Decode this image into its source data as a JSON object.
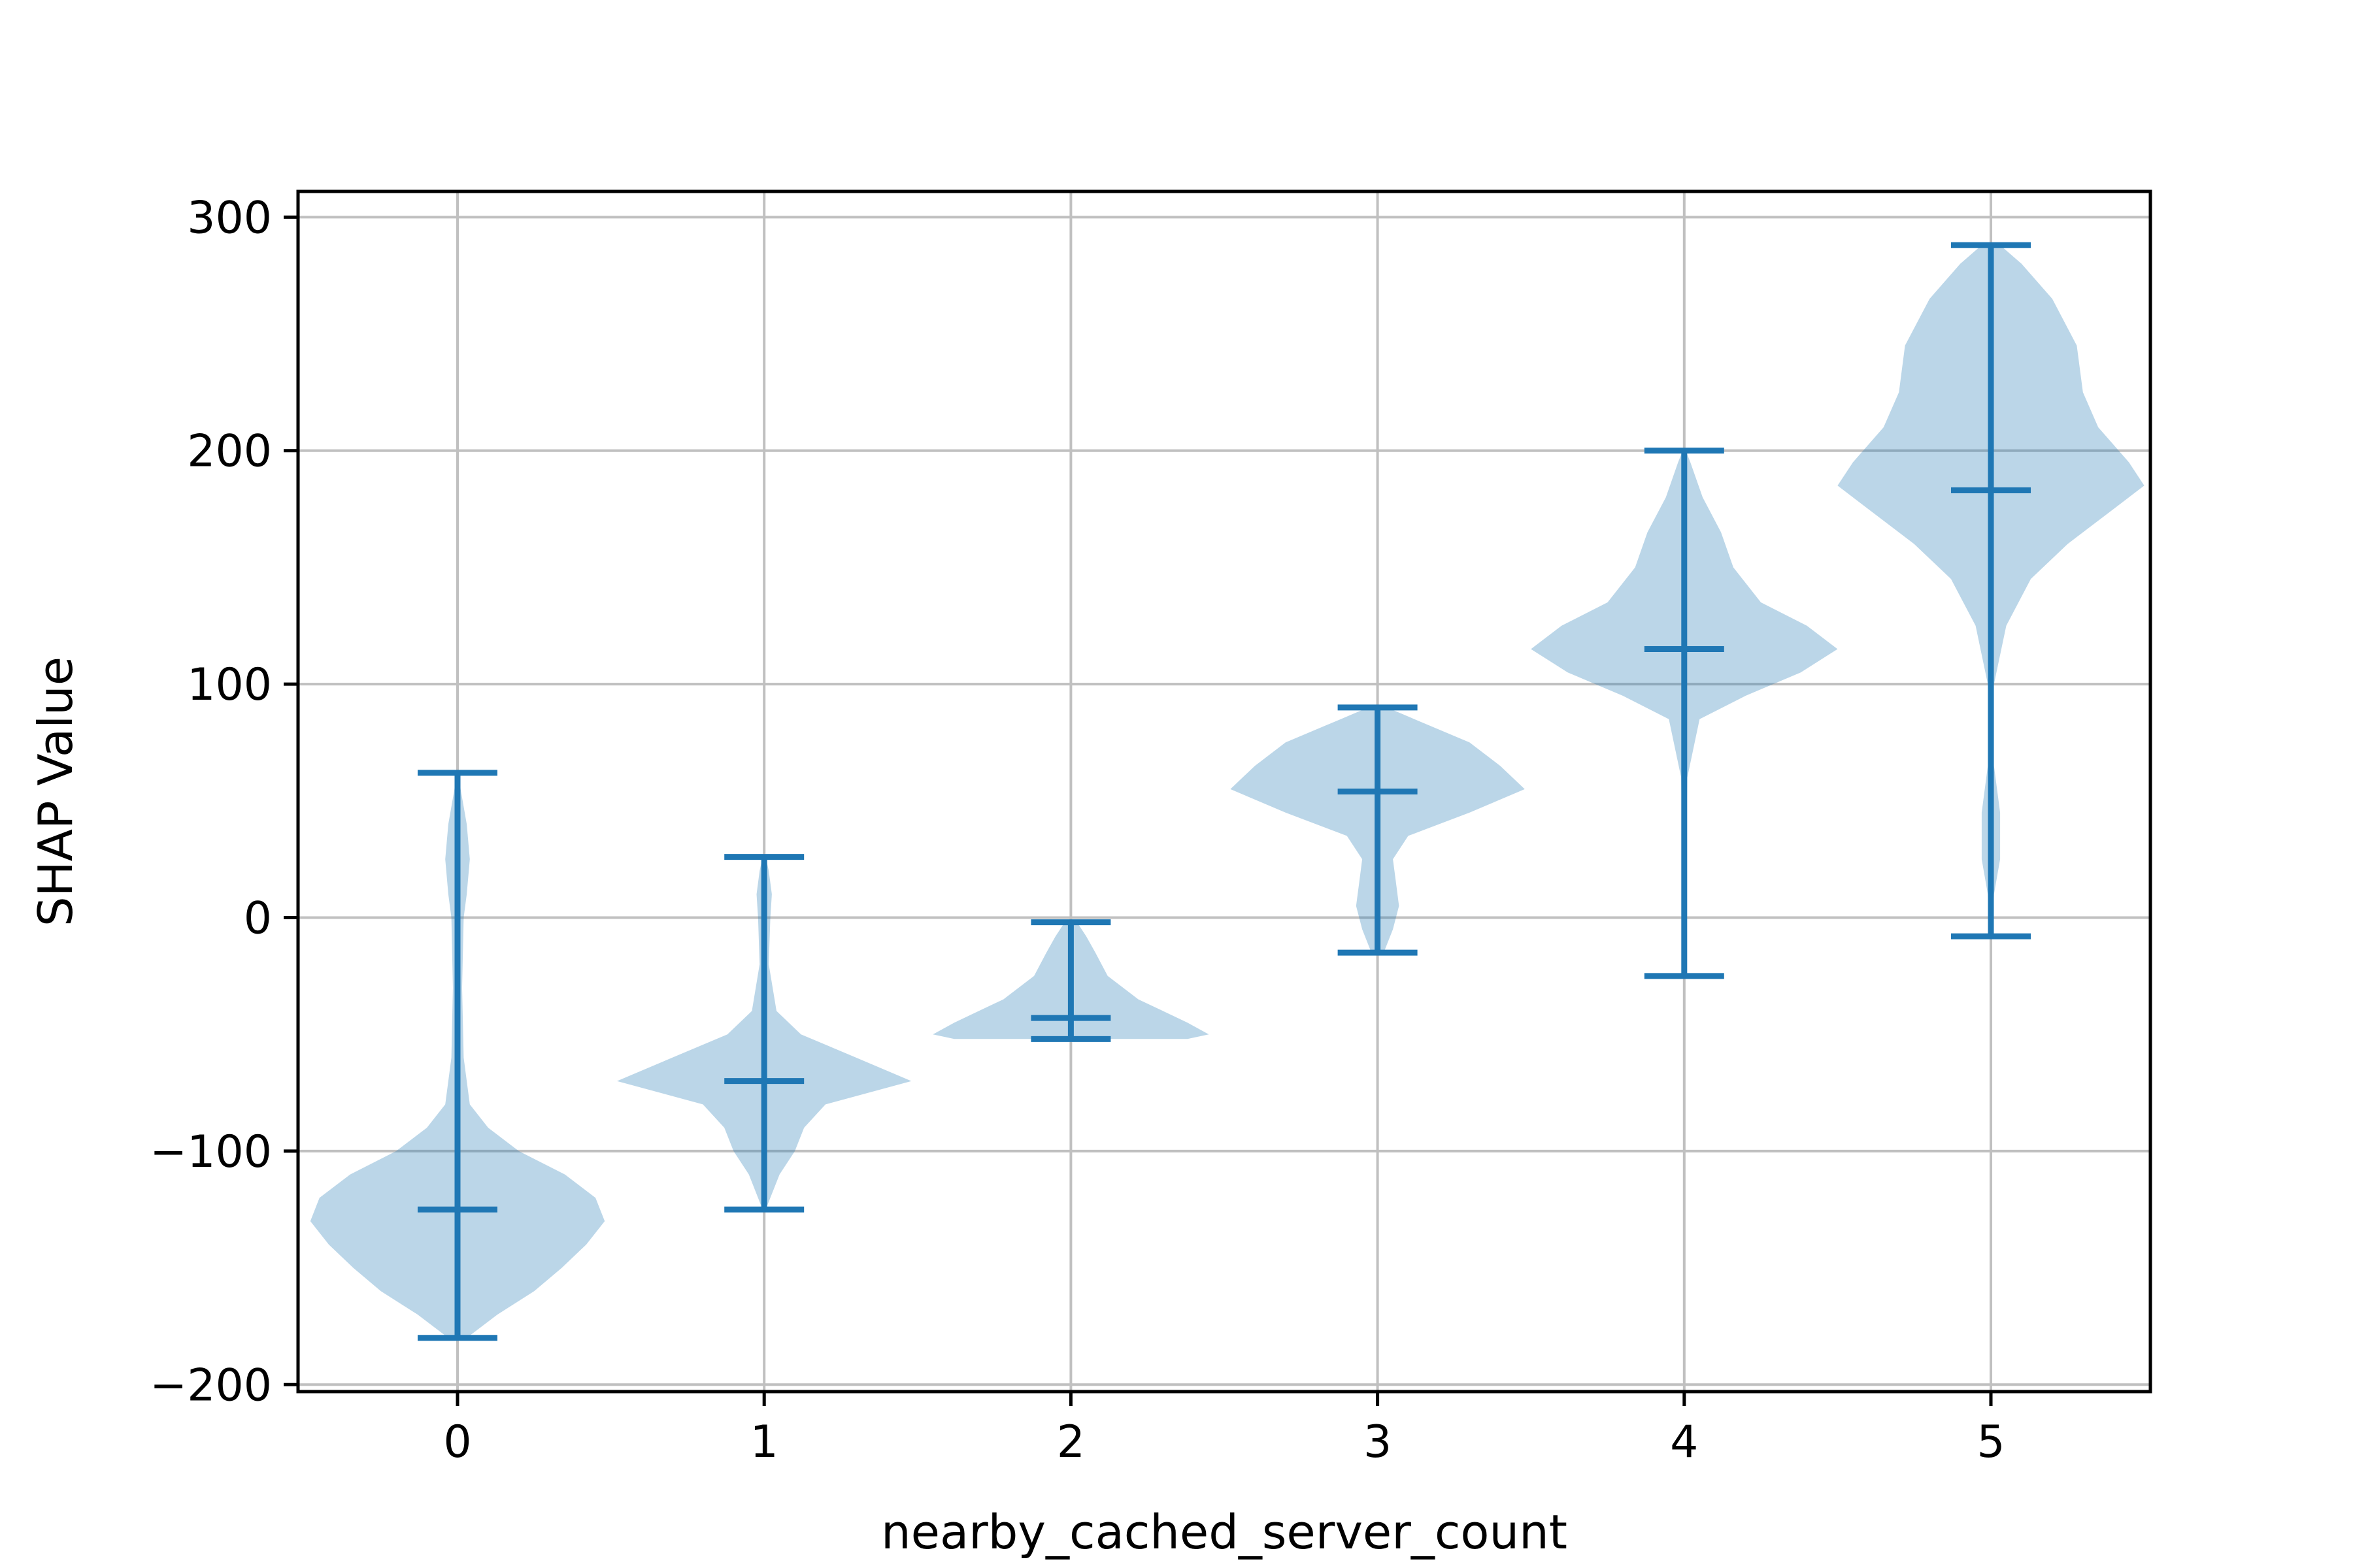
{
  "chart_data": {
    "type": "violin",
    "title": "",
    "xlabel": "nearby_cached_server_count",
    "ylabel": "SHAP Value",
    "xlim": [
      -0.52,
      5.52
    ],
    "ylim": [
      -203,
      311
    ],
    "x_ticks": [
      0,
      1,
      2,
      3,
      4,
      5
    ],
    "y_ticks": [
      -200,
      -100,
      0,
      100,
      200,
      300
    ],
    "y_tick_labels": [
      "−200",
      "−100",
      "0",
      "100",
      "200",
      "300"
    ],
    "grid": true,
    "colors": {
      "stat": "#1f77b4",
      "body": "#1f77b4",
      "body_alpha": 0.3,
      "grid": "#c0c0c0"
    },
    "violins": [
      {
        "x": 0,
        "min": -180,
        "median": -125,
        "max": 62,
        "density": [
          [
            -180,
            0.03
          ],
          [
            -170,
            0.13
          ],
          [
            -160,
            0.25
          ],
          [
            -150,
            0.34
          ],
          [
            -140,
            0.42
          ],
          [
            -130,
            0.48
          ],
          [
            -120,
            0.45
          ],
          [
            -110,
            0.35
          ],
          [
            -100,
            0.2
          ],
          [
            -90,
            0.1
          ],
          [
            -80,
            0.04
          ],
          [
            -60,
            0.02
          ],
          [
            -30,
            0.015
          ],
          [
            0,
            0.02
          ],
          [
            10,
            0.03
          ],
          [
            25,
            0.04
          ],
          [
            40,
            0.03
          ],
          [
            55,
            0.01
          ],
          [
            62,
            0.005
          ]
        ]
      },
      {
        "x": 1,
        "min": -125,
        "median": -70,
        "max": 26,
        "density": [
          [
            -125,
            0.005
          ],
          [
            -110,
            0.05
          ],
          [
            -100,
            0.1
          ],
          [
            -90,
            0.13
          ],
          [
            -80,
            0.2
          ],
          [
            -70,
            0.48
          ],
          [
            -60,
            0.3
          ],
          [
            -50,
            0.12
          ],
          [
            -40,
            0.04
          ],
          [
            -20,
            0.015
          ],
          [
            0,
            0.02
          ],
          [
            10,
            0.025
          ],
          [
            20,
            0.015
          ],
          [
            26,
            0.005
          ]
        ]
      },
      {
        "x": 2,
        "min": -52,
        "median": -43,
        "max": -2,
        "density": [
          [
            -52,
            0.38
          ],
          [
            -50,
            0.45
          ],
          [
            -45,
            0.38
          ],
          [
            -40,
            0.3
          ],
          [
            -35,
            0.22
          ],
          [
            -25,
            0.12
          ],
          [
            -15,
            0.08
          ],
          [
            -8,
            0.05
          ],
          [
            -2,
            0.02
          ]
        ]
      },
      {
        "x": 3,
        "min": -15,
        "median": 54,
        "max": 90,
        "density": [
          [
            -15,
            0.02
          ],
          [
            -5,
            0.05
          ],
          [
            5,
            0.07
          ],
          [
            15,
            0.06
          ],
          [
            25,
            0.05
          ],
          [
            35,
            0.1
          ],
          [
            45,
            0.3
          ],
          [
            55,
            0.48
          ],
          [
            65,
            0.4
          ],
          [
            75,
            0.3
          ],
          [
            85,
            0.12
          ],
          [
            90,
            0.03
          ]
        ]
      },
      {
        "x": 4,
        "min": -25,
        "median": 115,
        "max": 200,
        "density": [
          [
            -25,
            0.005
          ],
          [
            20,
            0.005
          ],
          [
            60,
            0.01
          ],
          [
            85,
            0.05
          ],
          [
            95,
            0.2
          ],
          [
            105,
            0.38
          ],
          [
            115,
            0.5
          ],
          [
            125,
            0.4
          ],
          [
            135,
            0.25
          ],
          [
            150,
            0.16
          ],
          [
            165,
            0.12
          ],
          [
            180,
            0.06
          ],
          [
            195,
            0.02
          ],
          [
            200,
            0.005
          ]
        ]
      },
      {
        "x": 5,
        "min": -8,
        "median": 183,
        "max": 288,
        "density": [
          [
            -8,
            0.005
          ],
          [
            10,
            0.01
          ],
          [
            25,
            0.03
          ],
          [
            45,
            0.03
          ],
          [
            65,
            0.01
          ],
          [
            100,
            0.01
          ],
          [
            125,
            0.05
          ],
          [
            145,
            0.13
          ],
          [
            160,
            0.25
          ],
          [
            175,
            0.4
          ],
          [
            185,
            0.5
          ],
          [
            195,
            0.45
          ],
          [
            210,
            0.35
          ],
          [
            225,
            0.3
          ],
          [
            245,
            0.28
          ],
          [
            265,
            0.2
          ],
          [
            280,
            0.1
          ],
          [
            288,
            0.03
          ]
        ]
      }
    ]
  }
}
